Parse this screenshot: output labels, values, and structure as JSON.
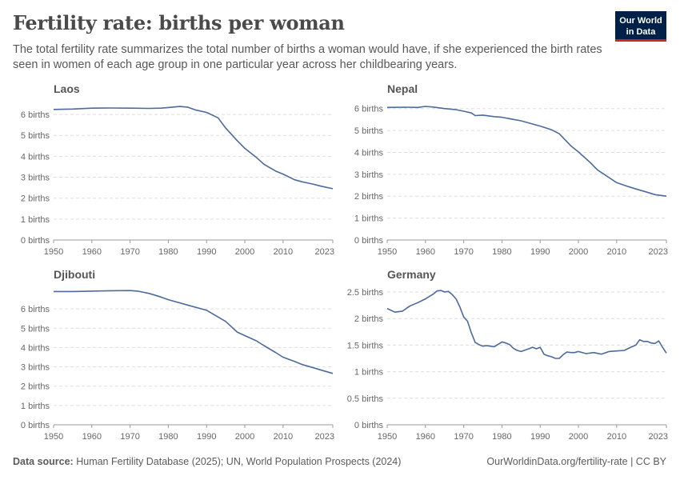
{
  "title": "Fertility rate: births per woman",
  "subtitle": "The total fertility rate summarizes the total number of births a woman would have, if she experienced the birth rates seen in women of each age group in one particular year across her childbearing years.",
  "logo": {
    "line1": "Our World",
    "line2": "in Data"
  },
  "footer": {
    "source_label": "Data source:",
    "source_text": "Human Fertility Database (2025); UN, World Population Prospects (2024)",
    "url": "OurWorldinData.org/fertility-rate | CC BY"
  },
  "colors": {
    "line": "#4c6a9c",
    "grid": "#dddddd",
    "axis": "#999999"
  },
  "chart_data": [
    {
      "type": "line",
      "title": "Laos",
      "unit": "births",
      "xticks": [
        1950,
        1960,
        1970,
        1980,
        1990,
        2000,
        2010,
        2023
      ],
      "yticks": [
        0,
        1,
        2,
        3,
        4,
        5,
        6
      ],
      "ylim": [
        0,
        6.5
      ],
      "xlim": [
        1950,
        2023
      ],
      "series": [
        {
          "name": "Laos",
          "x": [
            1950,
            1955,
            1960,
            1965,
            1970,
            1975,
            1978,
            1980,
            1983,
            1985,
            1987,
            1990,
            1993,
            1995,
            1998,
            2000,
            2003,
            2005,
            2008,
            2010,
            2013,
            2015,
            2018,
            2020,
            2023
          ],
          "y": [
            6.24,
            6.26,
            6.3,
            6.31,
            6.3,
            6.29,
            6.3,
            6.33,
            6.38,
            6.35,
            6.22,
            6.1,
            5.84,
            5.35,
            4.75,
            4.38,
            3.95,
            3.62,
            3.3,
            3.15,
            2.88,
            2.78,
            2.66,
            2.57,
            2.45
          ]
        }
      ]
    },
    {
      "type": "line",
      "title": "Nepal",
      "unit": "births",
      "xticks": [
        1950,
        1960,
        1970,
        1980,
        1990,
        2000,
        2010,
        2023
      ],
      "yticks": [
        0,
        1,
        2,
        3,
        4,
        5,
        6
      ],
      "ylim": [
        0,
        6.5
      ],
      "xlim": [
        1950,
        2023
      ],
      "series": [
        {
          "name": "Nepal",
          "x": [
            1950,
            1955,
            1958,
            1960,
            1962,
            1965,
            1968,
            1970,
            1972,
            1973,
            1975,
            1978,
            1980,
            1985,
            1990,
            1993,
            1995,
            1998,
            2000,
            2003,
            2005,
            2008,
            2010,
            2013,
            2015,
            2018,
            2020,
            2023
          ],
          "y": [
            6.05,
            6.06,
            6.05,
            6.1,
            6.07,
            6.0,
            5.95,
            5.88,
            5.8,
            5.68,
            5.7,
            5.63,
            5.6,
            5.44,
            5.2,
            5.03,
            4.85,
            4.3,
            4.02,
            3.55,
            3.2,
            2.85,
            2.62,
            2.44,
            2.33,
            2.18,
            2.07,
            2.0
          ]
        }
      ]
    },
    {
      "type": "line",
      "title": "Djibouti",
      "unit": "births",
      "xticks": [
        1950,
        1960,
        1970,
        1980,
        1990,
        2000,
        2010,
        2023
      ],
      "yticks": [
        0,
        1,
        2,
        3,
        4,
        5,
        6
      ],
      "ylim": [
        0,
        7.0
      ],
      "xlim": [
        1950,
        2023
      ],
      "series": [
        {
          "name": "Djibouti",
          "x": [
            1950,
            1955,
            1960,
            1965,
            1970,
            1972,
            1975,
            1978,
            1980,
            1985,
            1990,
            1992,
            1995,
            1998,
            2000,
            2003,
            2005,
            2008,
            2010,
            2013,
            2015,
            2018,
            2020,
            2023
          ],
          "y": [
            6.9,
            6.9,
            6.92,
            6.94,
            6.95,
            6.92,
            6.8,
            6.62,
            6.48,
            6.2,
            5.93,
            5.7,
            5.35,
            4.8,
            4.62,
            4.35,
            4.1,
            3.75,
            3.5,
            3.28,
            3.12,
            2.95,
            2.83,
            2.66
          ]
        }
      ]
    },
    {
      "type": "line",
      "title": "Germany",
      "unit": "births",
      "xticks": [
        1950,
        1960,
        1970,
        1980,
        1990,
        2000,
        2010,
        2023
      ],
      "yticks": [
        0,
        0.5,
        1,
        1.5,
        2,
        2.5
      ],
      "ylim": [
        0,
        2.5
      ],
      "xlim": [
        1950,
        2023
      ],
      "series": [
        {
          "name": "Germany",
          "x": [
            1950,
            1952,
            1954,
            1956,
            1958,
            1960,
            1962,
            1963,
            1964,
            1965,
            1966,
            1967,
            1968,
            1969,
            1970,
            1971,
            1972,
            1973,
            1974,
            1975,
            1976,
            1978,
            1980,
            1981,
            1982,
            1983,
            1984,
            1985,
            1987,
            1988,
            1989,
            1990,
            1991,
            1992,
            1993,
            1994,
            1995,
            1996,
            1997,
            1998,
            1999,
            2000,
            2002,
            2004,
            2006,
            2008,
            2010,
            2012,
            2014,
            2015,
            2016,
            2017,
            2018,
            2019,
            2020,
            2021,
            2022,
            2023
          ],
          "y": [
            2.19,
            2.12,
            2.14,
            2.24,
            2.3,
            2.37,
            2.46,
            2.52,
            2.53,
            2.5,
            2.51,
            2.45,
            2.37,
            2.22,
            2.03,
            1.95,
            1.73,
            1.55,
            1.51,
            1.48,
            1.49,
            1.47,
            1.56,
            1.54,
            1.51,
            1.44,
            1.4,
            1.38,
            1.43,
            1.46,
            1.43,
            1.46,
            1.33,
            1.3,
            1.28,
            1.25,
            1.25,
            1.32,
            1.37,
            1.36,
            1.36,
            1.38,
            1.34,
            1.36,
            1.33,
            1.38,
            1.39,
            1.4,
            1.47,
            1.5,
            1.6,
            1.57,
            1.57,
            1.54,
            1.53,
            1.58,
            1.46,
            1.35
          ]
        }
      ]
    }
  ]
}
